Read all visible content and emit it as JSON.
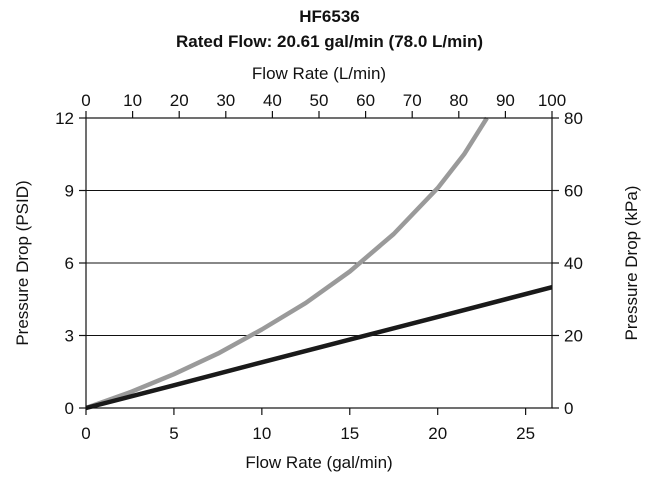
{
  "chart_data": {
    "type": "line",
    "title": "HF6536",
    "subtitle": "Rated Flow: 20.61 gal/min (78.0 L/min)",
    "xlabel": "Flow Rate (gal/min)",
    "x2label": "Flow Rate (L/min)",
    "ylabel": "Pressure Drop (PSID)",
    "y2label": "Pressure Drop (kPa)",
    "xlim": [
      0,
      26.5
    ],
    "x2lim": [
      0,
      100
    ],
    "ylim": [
      0,
      12
    ],
    "y2lim": [
      0,
      80
    ],
    "xticks": [
      0,
      5,
      10,
      15,
      20,
      25
    ],
    "x2ticks": [
      0,
      10,
      20,
      30,
      40,
      50,
      60,
      70,
      80,
      90,
      100
    ],
    "yticks": [
      0,
      3,
      6,
      9,
      12
    ],
    "y2ticks": [
      0,
      20,
      40,
      60,
      80
    ],
    "grid": "horizontal",
    "series": [
      {
        "color": "#9a9a9a",
        "x": [
          0,
          2.5,
          5,
          7.5,
          10,
          12.5,
          15,
          17.5,
          20,
          21.5,
          22.8
        ],
        "y": [
          0,
          0.65,
          1.4,
          2.25,
          3.25,
          4.35,
          5.65,
          7.2,
          9.1,
          10.5,
          12.0
        ]
      },
      {
        "color": "#1a1a1a",
        "x": [
          0,
          5,
          10,
          15,
          20,
          26.5
        ],
        "y": [
          0,
          0.94,
          1.89,
          2.83,
          3.77,
          5.0
        ]
      }
    ]
  }
}
